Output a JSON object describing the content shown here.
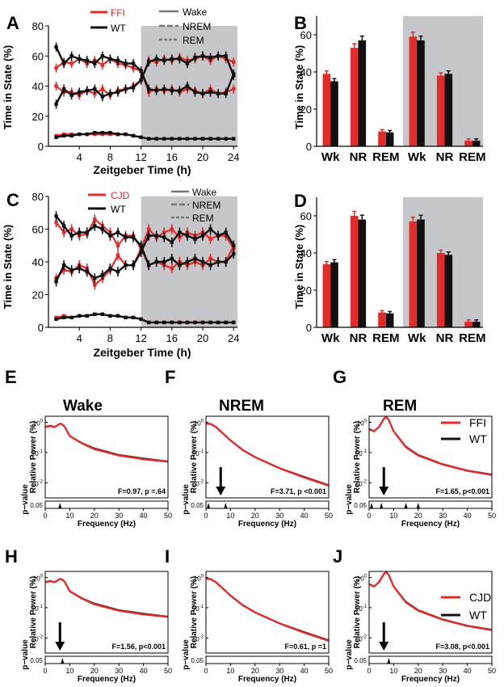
{
  "panels": {
    "A": {
      "letter": "A",
      "legend_strain": "FFI",
      "legend_wt": "WT",
      "legend_wake": "Wake",
      "legend_nrem": "NREM",
      "legend_rem": "REM",
      "ylabel": "Time in State (%)",
      "xlabel": "Zeitgeber Time (h)"
    },
    "B": {
      "letter": "B",
      "ylabel": "Time in State (%)"
    },
    "C": {
      "letter": "C",
      "legend_strain": "CJD",
      "legend_wt": "WT",
      "legend_wake": "Wake",
      "legend_nrem": "NREM",
      "legend_rem": "REM",
      "ylabel": "Time in State (%)",
      "xlabel": "Zeitgeber Time (h)"
    },
    "D": {
      "letter": "D",
      "ylabel": "Time in State (%)"
    },
    "E": {
      "letter": "E",
      "title": "Wake",
      "stat": "F=0.97, p =.64"
    },
    "F": {
      "letter": "F",
      "title": "NREM",
      "stat": "F=3.71, p <0.001"
    },
    "G": {
      "letter": "G",
      "title": "REM",
      "stat": "F=1.65, p<0.001",
      "legend_strain": "FFI",
      "legend_wt": "WT"
    },
    "H": {
      "letter": "H",
      "stat": "F=1.56, p<0.001"
    },
    "I": {
      "letter": "I",
      "stat": "F=0.61, p =1"
    },
    "J": {
      "letter": "J",
      "stat": "F=3.08, p<0.001",
      "legend_strain": "CJD",
      "legend_wt": "WT"
    }
  },
  "spectra_labels": {
    "ylabel": "Relative Power (%)",
    "pvalue_label": "p−value",
    "xlabel": "Frequency (Hz)",
    "ytick_hi": "10",
    "ytick_lo": "0.05"
  },
  "colors": {
    "strain": "#e32b2b",
    "wt": "#111111",
    "dark_shade": "#c5c7ca"
  },
  "chart_data": [
    {
      "id": "A",
      "type": "line",
      "x": [
        1,
        2,
        3,
        4,
        5,
        6,
        7,
        8,
        9,
        10,
        11,
        12,
        13,
        14,
        15,
        16,
        17,
        18,
        19,
        20,
        21,
        22,
        23,
        24
      ],
      "xlim": [
        0,
        24.5
      ],
      "ylim": [
        0,
        80
      ],
      "xticks": [
        "4",
        "8",
        "12",
        "16",
        "20",
        "24"
      ],
      "yticks": [
        "0",
        "20",
        "40",
        "60",
        "80"
      ],
      "dark_phase": [
        12,
        24
      ],
      "series": [
        {
          "name": "FFI",
          "state": "NREM",
          "values": [
            52,
            56,
            55,
            58,
            55,
            57,
            54,
            58,
            55,
            54,
            52,
            50,
            36,
            38,
            37,
            38,
            36,
            38,
            37,
            35,
            38,
            35,
            36,
            38
          ]
        },
        {
          "name": "FFI",
          "state": "Wake",
          "values": [
            40,
            36,
            36,
            34,
            37,
            35,
            38,
            34,
            37,
            38,
            40,
            44,
            57,
            56,
            58,
            57,
            59,
            57,
            58,
            60,
            57,
            60,
            58,
            56
          ]
        },
        {
          "name": "FFI",
          "state": "REM",
          "values": [
            7,
            8,
            8,
            8,
            8,
            8,
            8,
            8,
            8,
            8,
            7,
            6,
            5,
            5,
            5,
            5,
            5,
            5,
            5,
            5,
            5,
            5,
            5,
            5
          ]
        },
        {
          "name": "WT",
          "state": "NREM",
          "values": [
            66,
            55,
            60,
            58,
            57,
            55,
            60,
            58,
            57,
            55,
            55,
            50,
            38,
            37,
            38,
            37,
            37,
            40,
            36,
            35,
            36,
            35,
            35,
            48
          ]
        },
        {
          "name": "WT",
          "state": "Wake",
          "values": [
            28,
            38,
            34,
            36,
            37,
            38,
            33,
            35,
            36,
            38,
            39,
            44,
            56,
            58,
            57,
            58,
            58,
            55,
            59,
            60,
            59,
            60,
            60,
            47
          ]
        },
        {
          "name": "WT",
          "state": "REM",
          "values": [
            6,
            7,
            7,
            8,
            8,
            9,
            9,
            9,
            8,
            8,
            7,
            6,
            5,
            5,
            5,
            5,
            5,
            5,
            5,
            5,
            5,
            5,
            5,
            5
          ]
        }
      ],
      "xlabel": "Zeitgeber Time (h)",
      "ylabel": "Time in State (%)"
    },
    {
      "id": "B",
      "type": "bar",
      "categories": [
        "Wk",
        "NR",
        "REM",
        "Wk",
        "NR",
        "REM"
      ],
      "ylim": [
        0,
        70
      ],
      "yticks": [
        "0",
        "20",
        "40",
        "60"
      ],
      "series": [
        {
          "name": "FFI",
          "values": [
            39,
            53,
            8,
            59,
            38,
            3
          ]
        },
        {
          "name": "WT",
          "values": [
            35,
            57,
            7.5,
            57,
            39,
            3
          ]
        }
      ],
      "ylabel": "Time in State (%)"
    },
    {
      "id": "C",
      "type": "line",
      "x": [
        1,
        2,
        3,
        4,
        5,
        6,
        7,
        8,
        9,
        10,
        11,
        12,
        13,
        14,
        15,
        16,
        17,
        18,
        19,
        20,
        21,
        22,
        23,
        24
      ],
      "xlim": [
        0,
        24.5
      ],
      "ylim": [
        0,
        80
      ],
      "xticks": [
        "4",
        "8",
        "12",
        "16",
        "20",
        "24"
      ],
      "yticks": [
        "0",
        "20",
        "40",
        "60",
        "80"
      ],
      "dark_phase": [
        12,
        24
      ],
      "series": [
        {
          "name": "CJD",
          "state": "NREM",
          "values": [
            64,
            58,
            60,
            56,
            57,
            66,
            62,
            58,
            50,
            56,
            56,
            48,
            38,
            40,
            38,
            36,
            40,
            38,
            40,
            38,
            42,
            40,
            40,
            50
          ]
        },
        {
          "name": "CJD",
          "state": "Wake",
          "values": [
            30,
            35,
            34,
            38,
            36,
            26,
            30,
            35,
            44,
            38,
            38,
            48,
            60,
            55,
            58,
            60,
            55,
            58,
            56,
            58,
            54,
            56,
            56,
            48
          ]
        },
        {
          "name": "CJD",
          "state": "REM",
          "values": [
            6,
            7,
            6,
            7,
            7,
            8,
            8,
            7,
            7,
            6,
            6,
            5,
            3,
            3,
            3,
            3,
            3,
            3,
            3,
            3,
            3,
            3,
            3,
            3
          ]
        },
        {
          "name": "WT",
          "state": "NREM",
          "values": [
            68,
            62,
            56,
            58,
            58,
            62,
            60,
            56,
            58,
            55,
            55,
            50,
            38,
            40,
            40,
            42,
            38,
            40,
            42,
            40,
            38,
            40,
            40,
            45
          ]
        },
        {
          "name": "WT",
          "state": "Wake",
          "values": [
            28,
            38,
            35,
            36,
            34,
            30,
            32,
            36,
            34,
            38,
            38,
            46,
            56,
            56,
            55,
            52,
            58,
            56,
            54,
            56,
            60,
            56,
            58,
            50
          ]
        },
        {
          "name": "WT",
          "state": "REM",
          "values": [
            5,
            6,
            6,
            7,
            7,
            8,
            8,
            7,
            7,
            6,
            6,
            5,
            3,
            3,
            3,
            3,
            3,
            3,
            3,
            3,
            3,
            3,
            3,
            3
          ]
        }
      ],
      "xlabel": "Zeitgeber Time (h)",
      "ylabel": "Time in State (%)"
    },
    {
      "id": "D",
      "type": "bar",
      "categories": [
        "Wk",
        "NR",
        "REM",
        "Wk",
        "NR",
        "REM"
      ],
      "ylim": [
        0,
        70
      ],
      "yticks": [
        "0",
        "20",
        "40",
        "60"
      ],
      "series": [
        {
          "name": "CJD",
          "values": [
            34,
            60,
            8,
            57,
            40,
            3
          ]
        },
        {
          "name": "WT",
          "values": [
            35,
            58,
            7.5,
            58,
            39,
            3
          ]
        }
      ],
      "ylabel": "Time in State (%)"
    },
    {
      "id": "E",
      "type": "line",
      "title": "Wake",
      "x": [
        0,
        2,
        4,
        5,
        6,
        7,
        8,
        10,
        15,
        20,
        30,
        40,
        50
      ],
      "xlim": [
        0,
        50
      ],
      "ylim_log10": [
        -2.5,
        0.2
      ],
      "xticks": [
        "0",
        "10",
        "20",
        "30",
        "40",
        "50"
      ],
      "series": [
        {
          "name": "FFI",
          "values": [
            0.7,
            0.75,
            0.7,
            0.8,
            0.9,
            0.85,
            0.7,
            0.35,
            0.2,
            0.13,
            0.08,
            0.06,
            0.05
          ]
        },
        {
          "name": "WT",
          "values": [
            0.72,
            0.78,
            0.72,
            0.82,
            0.92,
            0.86,
            0.72,
            0.36,
            0.21,
            0.14,
            0.085,
            0.065,
            0.052
          ]
        }
      ],
      "pvalue_bumps": [
        6
      ],
      "stat": "F=0.97, p =.64"
    },
    {
      "id": "F",
      "type": "line",
      "title": "NREM",
      "x": [
        0,
        2,
        4,
        6,
        10,
        15,
        20,
        30,
        40,
        50
      ],
      "xlim": [
        0,
        50
      ],
      "ylim_log10": [
        -2.5,
        0.2
      ],
      "xticks": [
        "0",
        "10",
        "20",
        "30",
        "40",
        "50"
      ],
      "series": [
        {
          "name": "FFI",
          "values": [
            0.9,
            0.88,
            0.7,
            0.5,
            0.25,
            0.12,
            0.07,
            0.03,
            0.015,
            0.008
          ]
        },
        {
          "name": "WT",
          "values": [
            0.92,
            0.9,
            0.72,
            0.52,
            0.26,
            0.125,
            0.072,
            0.031,
            0.016,
            0.0085
          ]
        }
      ],
      "pvalue_bumps": [
        1,
        8
      ],
      "stat": "F=3.71, p <0.001"
    },
    {
      "id": "G",
      "type": "line",
      "title": "REM",
      "x": [
        0,
        2,
        4,
        6,
        7,
        8,
        10,
        15,
        20,
        30,
        40,
        50
      ],
      "xlim": [
        0,
        50
      ],
      "ylim_log10": [
        -2.5,
        0.2
      ],
      "xticks": [
        "0",
        "10",
        "20",
        "30",
        "40",
        "50"
      ],
      "series": [
        {
          "name": "FFI",
          "values": [
            0.6,
            0.5,
            0.7,
            1.3,
            1.5,
            1.2,
            0.5,
            0.15,
            0.08,
            0.04,
            0.025,
            0.018
          ]
        },
        {
          "name": "WT",
          "values": [
            0.62,
            0.52,
            0.72,
            1.35,
            1.55,
            1.25,
            0.52,
            0.16,
            0.085,
            0.042,
            0.026,
            0.019
          ]
        }
      ],
      "pvalue_bumps": [
        1,
        5,
        15,
        20
      ],
      "stat": "F=1.65, p<0.001"
    },
    {
      "id": "H",
      "type": "line",
      "x": [
        0,
        2,
        4,
        5,
        6,
        7,
        8,
        10,
        15,
        20,
        30,
        40,
        50
      ],
      "xlim": [
        0,
        50
      ],
      "ylim_log10": [
        -2.5,
        0.2
      ],
      "xticks": [
        "0",
        "10",
        "20",
        "30",
        "40",
        "50"
      ],
      "series": [
        {
          "name": "CJD",
          "values": [
            0.7,
            0.75,
            0.7,
            0.8,
            0.9,
            0.85,
            0.7,
            0.35,
            0.2,
            0.13,
            0.08,
            0.06,
            0.05
          ]
        },
        {
          "name": "WT",
          "values": [
            0.72,
            0.78,
            0.72,
            0.82,
            0.92,
            0.86,
            0.72,
            0.36,
            0.21,
            0.14,
            0.085,
            0.065,
            0.052
          ]
        }
      ],
      "pvalue_bumps": [
        7
      ],
      "stat": "F=1.56, p<0.001"
    },
    {
      "id": "I",
      "type": "line",
      "x": [
        0,
        2,
        4,
        6,
        10,
        15,
        20,
        30,
        40,
        50
      ],
      "xlim": [
        0,
        50
      ],
      "ylim_log10": [
        -2.5,
        0.2
      ],
      "xticks": [
        "0",
        "10",
        "20",
        "30",
        "40",
        "50"
      ],
      "series": [
        {
          "name": "CJD",
          "values": [
            0.9,
            0.88,
            0.7,
            0.5,
            0.25,
            0.12,
            0.07,
            0.03,
            0.015,
            0.008
          ]
        },
        {
          "name": "WT",
          "values": [
            0.92,
            0.9,
            0.72,
            0.52,
            0.26,
            0.125,
            0.072,
            0.031,
            0.016,
            0.0085
          ]
        }
      ],
      "pvalue_bumps": [],
      "stat": "F=0.61, p =1"
    },
    {
      "id": "J",
      "type": "line",
      "x": [
        0,
        2,
        4,
        6,
        7,
        8,
        10,
        15,
        20,
        30,
        40,
        50
      ],
      "xlim": [
        0,
        50
      ],
      "ylim_log10": [
        -2.5,
        0.2
      ],
      "xticks": [
        "0",
        "10",
        "20",
        "30",
        "40",
        "50"
      ],
      "series": [
        {
          "name": "CJD",
          "values": [
            0.6,
            0.5,
            0.7,
            1.3,
            1.5,
            1.2,
            0.5,
            0.15,
            0.08,
            0.04,
            0.025,
            0.018
          ]
        },
        {
          "name": "WT",
          "values": [
            0.62,
            0.52,
            0.72,
            1.35,
            1.55,
            1.25,
            0.52,
            0.16,
            0.085,
            0.042,
            0.026,
            0.019
          ]
        }
      ],
      "pvalue_bumps": [
        8
      ],
      "stat": "F=3.08, p<0.001"
    }
  ]
}
